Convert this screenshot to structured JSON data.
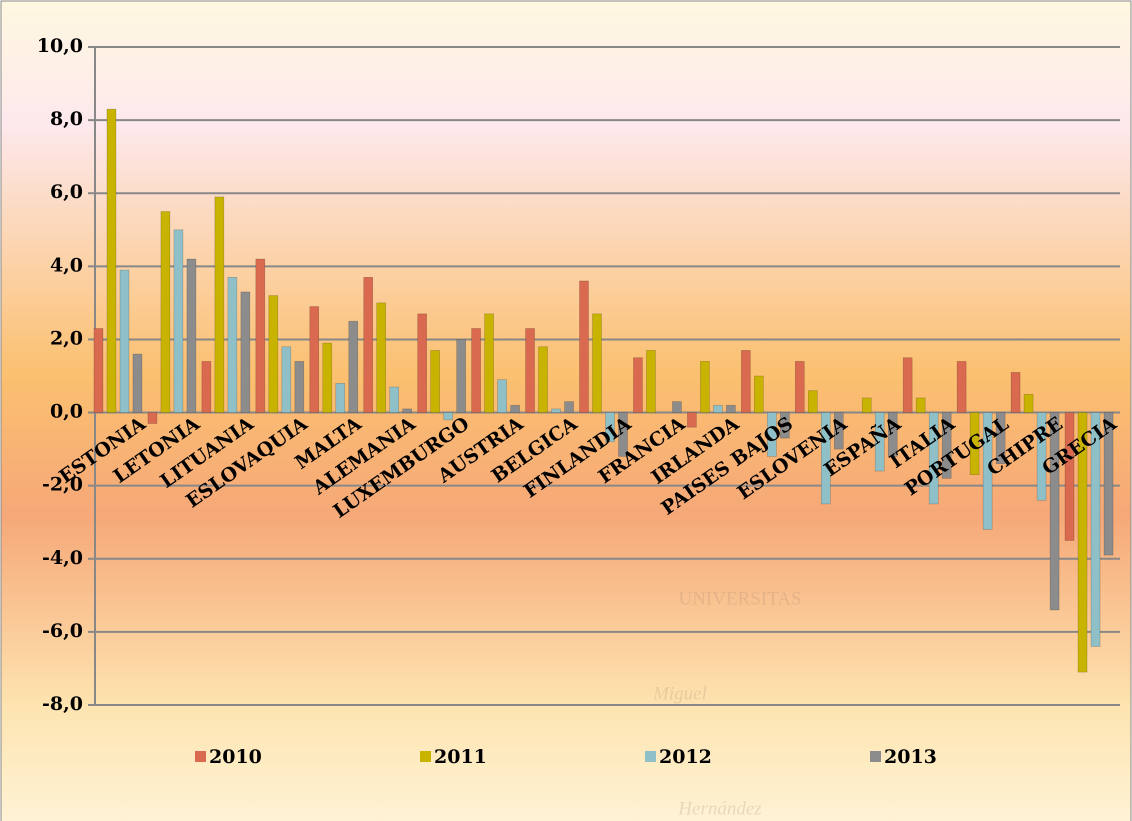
{
  "chart_data": {
    "type": "bar",
    "categories": [
      "ESTONIA",
      "LETONIA",
      "LITUANIA",
      "ESLOVAQUIA",
      "MALTA",
      "ALEMANIA",
      "LUXEMBURGO",
      "AUSTRIA",
      "BELGICA",
      "FINLANDIA",
      "FRANCIA",
      "IRLANDA",
      "PAISES BAJOS",
      "ESLOVENIA",
      "ESPAÑA",
      "ITALIA",
      "PORTUGAL",
      "CHIPRE",
      "GRECIA"
    ],
    "series": [
      {
        "name": "2010",
        "color": "#d9694f",
        "values": [
          2.3,
          -0.3,
          1.4,
          4.2,
          2.9,
          3.7,
          2.7,
          2.3,
          2.3,
          3.6,
          1.5,
          -0.4,
          1.7,
          1.4,
          0.0,
          1.5,
          1.4,
          1.1,
          -3.5
        ]
      },
      {
        "name": "2011",
        "color": "#c8b400",
        "values": [
          8.3,
          5.5,
          5.9,
          3.2,
          1.9,
          3.0,
          1.7,
          2.7,
          1.8,
          2.7,
          1.7,
          1.4,
          1.0,
          0.6,
          0.4,
          0.4,
          -1.7,
          0.5,
          -7.1
        ]
      },
      {
        "name": "2012",
        "color": "#8fc0c8",
        "values": [
          3.9,
          5.0,
          3.7,
          1.8,
          0.8,
          0.7,
          -0.2,
          0.9,
          0.1,
          -0.8,
          0.0,
          0.2,
          -1.2,
          -2.5,
          -1.6,
          -2.5,
          -3.2,
          -2.4,
          -6.4
        ]
      },
      {
        "name": "2013",
        "color": "#8c8c8c",
        "values": [
          1.6,
          4.2,
          3.3,
          1.4,
          2.5,
          0.1,
          2.0,
          0.2,
          0.3,
          -1.2,
          0.3,
          0.2,
          -0.7,
          -1.0,
          -1.2,
          -1.8,
          -1.4,
          -5.4,
          -3.9
        ]
      }
    ],
    "ylim": [
      -8,
      10
    ],
    "yticks": [
      {
        "value": -8,
        "label": "-8,0"
      },
      {
        "value": -6,
        "label": "-6,0"
      },
      {
        "value": -4,
        "label": "-4,0"
      },
      {
        "value": -2,
        "label": "-2,0"
      },
      {
        "value": 0,
        "label": "0,0"
      },
      {
        "value": 2,
        "label": "2,0"
      },
      {
        "value": 4,
        "label": "4,0"
      },
      {
        "value": 6,
        "label": "6,0"
      },
      {
        "value": 8,
        "label": "8,0"
      },
      {
        "value": 10,
        "label": "10,0"
      }
    ],
    "grid": true,
    "legend": "bottom",
    "watermark": [
      "UNIVERSITAS",
      "Miguel",
      "Hernández"
    ]
  }
}
